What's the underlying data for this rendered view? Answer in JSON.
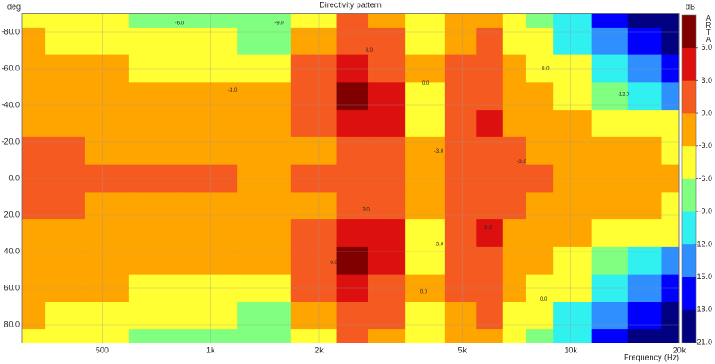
{
  "chart_data": {
    "type": "contour",
    "title": "Directivity pattern",
    "ylabel": "deg",
    "xlabel": "Frequency (Hz)",
    "colorbar_label": "dB",
    "brand": "ARTA",
    "log_x": true,
    "grid": true,
    "y_inverted": true,
    "xlim": [
      300,
      20000
    ],
    "ylim": [
      -90,
      90
    ],
    "xticks": [
      500,
      {
        "value": 1000,
        "label": "1k"
      },
      {
        "value": 2000,
        "label": "2k"
      },
      {
        "value": 5000,
        "label": "5k"
      },
      {
        "value": 10000,
        "label": "10k"
      },
      {
        "value": 20000,
        "label": "20k"
      }
    ],
    "yticks": [
      {
        "value": -80,
        "label": "-80.0"
      },
      {
        "value": -60,
        "label": "-60.0"
      },
      {
        "value": -40,
        "label": "-40.0"
      },
      {
        "value": -20,
        "label": "-20.0"
      },
      {
        "value": 0,
        "label": "0.0"
      },
      {
        "value": 20,
        "label": "20.0"
      },
      {
        "value": 40,
        "label": "40.0"
      },
      {
        "value": 60,
        "label": "60.0"
      },
      {
        "value": 80,
        "label": "80.0"
      }
    ],
    "zlim": [
      -21,
      9
    ],
    "zticks": [
      {
        "value": 6,
        "label": "6.0"
      },
      {
        "value": 3,
        "label": "3.0"
      },
      {
        "value": 0,
        "label": "0.0"
      },
      {
        "value": -3,
        "label": "-3.0"
      },
      {
        "value": -6,
        "label": "-6.0"
      },
      {
        "value": -9,
        "label": "-9.0"
      },
      {
        "value": -12,
        "label": "-12.0"
      },
      {
        "value": -15,
        "label": "-15.0"
      },
      {
        "value": -18,
        "label": "-18.0"
      },
      {
        "value": -21,
        "label": "-21.0"
      }
    ],
    "level_step": 3,
    "colors": [
      "#000080",
      "#0000ff",
      "#2f8fff",
      "#30f0f0",
      "#80ff80",
      "#ffff33",
      "#ffa500",
      "#f55a20",
      "#dd1010",
      "#800000"
    ],
    "x": [
      300,
      400,
      500,
      700,
      1000,
      1400,
      2000,
      2500,
      3000,
      4000,
      5000,
      6000,
      7000,
      8000,
      10000,
      13000,
      16000,
      20000
    ],
    "y": [
      -90,
      -75,
      -60,
      -45,
      -30,
      -15,
      0,
      15,
      30,
      45,
      60,
      75,
      90
    ],
    "z": [
      [
        -3.5,
        -4,
        -5,
        -6.5,
        -8,
        -9,
        -4,
        0.5,
        -1,
        -4,
        -2,
        -1,
        -4,
        -7,
        -12,
        -16,
        -19,
        -21
      ],
      [
        -3,
        -3.5,
        -4,
        -5.5,
        -6,
        -7,
        -2,
        1.5,
        0.5,
        -3.5,
        -1,
        1,
        -3.5,
        -5,
        -10,
        -14,
        -18,
        -20
      ],
      [
        -2,
        -2,
        -2.5,
        -3.5,
        -3.5,
        -4.5,
        0.5,
        3,
        2.5,
        -2,
        0.5,
        1.5,
        -2,
        -3.5,
        -6,
        -10,
        -15,
        -18
      ],
      [
        -1,
        -1.5,
        -1.5,
        -2,
        -2.5,
        -2.5,
        1,
        6.5,
        4,
        -3.5,
        0.5,
        1,
        -1.5,
        -2.5,
        -4,
        -7,
        -10,
        -13
      ],
      [
        -1,
        -1,
        -1,
        -1.5,
        -1.5,
        -2,
        0.5,
        3.5,
        3,
        -4,
        0.5,
        3.5,
        -1,
        -1.5,
        -2.5,
        -4,
        -5,
        -6
      ],
      [
        1,
        0.5,
        -0.5,
        -1,
        -1,
        -1.5,
        -0.5,
        2,
        1.5,
        -2,
        0.5,
        2,
        0.5,
        -1,
        -2,
        -2.5,
        -3,
        -3.5
      ],
      [
        1,
        1,
        0.5,
        0.5,
        0.5,
        -1,
        0.5,
        1.5,
        1,
        -1.5,
        0.5,
        1.5,
        0.5,
        0.5,
        -1,
        -1,
        -1.5,
        -2
      ],
      [
        1,
        0.5,
        -0.5,
        -1,
        -1,
        -1.5,
        -0.5,
        2,
        1.5,
        -2,
        0.5,
        2,
        0.5,
        -1,
        -2,
        -2.5,
        -3,
        -3.5
      ],
      [
        -1,
        -1,
        -1,
        -1.5,
        -1.5,
        -2,
        0.5,
        3.5,
        3,
        -4,
        0.5,
        3.5,
        -1,
        -1.5,
        -2.5,
        -4,
        -5,
        -6
      ],
      [
        -1,
        -1.5,
        -1.5,
        -2,
        -2.5,
        -2.5,
        1,
        6.5,
        4,
        -3.5,
        0.5,
        1,
        -1.5,
        -2.5,
        -4,
        -7,
        -10,
        -13
      ],
      [
        -2,
        -2,
        -2.5,
        -3.5,
        -3.5,
        -4.5,
        0.5,
        3,
        2.5,
        -2,
        0.5,
        1.5,
        -2,
        -3.5,
        -6,
        -10,
        -15,
        -18
      ],
      [
        -3,
        -3.5,
        -4,
        -5.5,
        -6,
        -7,
        -2,
        1.5,
        0.5,
        -3.5,
        -1,
        1,
        -3.5,
        -5,
        -10,
        -14,
        -18,
        -20
      ],
      [
        -3.5,
        -4,
        -5,
        -6.5,
        -8,
        -9,
        -4,
        0.5,
        -1,
        -4,
        -2,
        -1,
        -4,
        -7,
        -12,
        -16,
        -19,
        -21
      ]
    ],
    "annotations": [
      {
        "text": "-6.0",
        "x": 820,
        "y": -85
      },
      {
        "text": "-9.0",
        "x": 1550,
        "y": -85
      },
      {
        "text": "-3.0",
        "x": 1150,
        "y": -48
      },
      {
        "text": "3.0",
        "x": 2750,
        "y": -70
      },
      {
        "text": "0.0",
        "x": 3950,
        "y": -52
      },
      {
        "text": "-3.0",
        "x": 4300,
        "y": -15
      },
      {
        "text": "-3.0",
        "x": 7300,
        "y": -9
      },
      {
        "text": "0.0",
        "x": 8500,
        "y": -60
      },
      {
        "text": "-12.0",
        "x": 14000,
        "y": -46
      },
      {
        "text": "3.0",
        "x": 2700,
        "y": 17
      },
      {
        "text": "-3.0",
        "x": 4300,
        "y": 36
      },
      {
        "text": "0.0",
        "x": 2200,
        "y": 46
      },
      {
        "text": "0.0",
        "x": 3900,
        "y": 62
      },
      {
        "text": "0.0",
        "x": 8400,
        "y": 66
      },
      {
        "text": "3.0",
        "x": 5900,
        "y": 27
      }
    ]
  }
}
